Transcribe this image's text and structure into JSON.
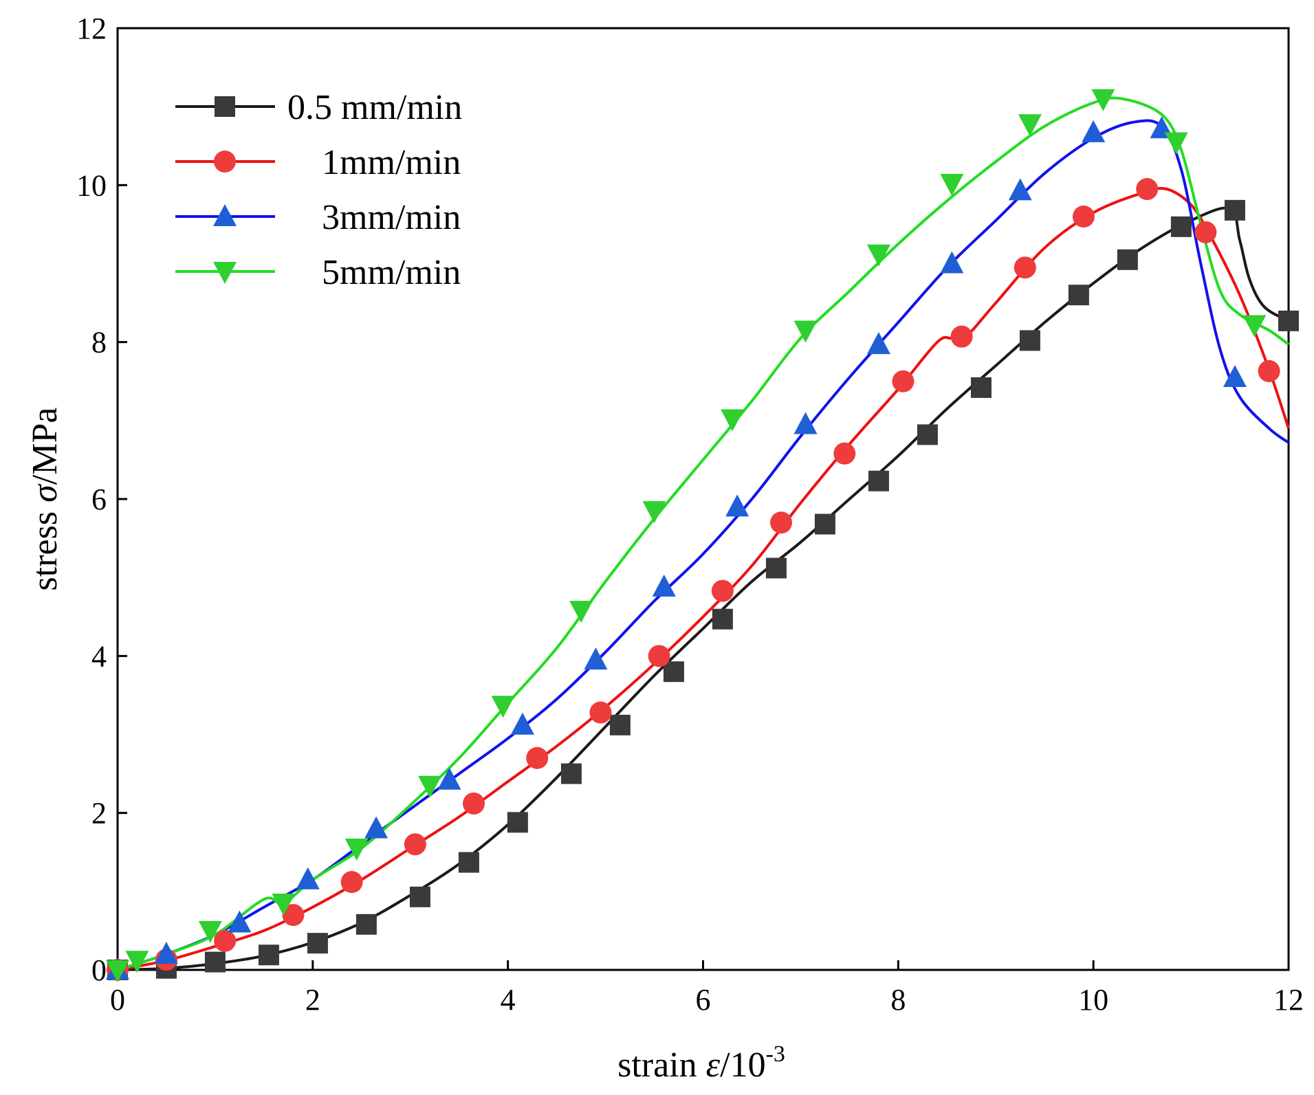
{
  "chart_data": {
    "type": "line",
    "title": "",
    "xlabel": {
      "prefix": "strain ",
      "symbol": "ε",
      "suffix": "/10",
      "sup": "-3"
    },
    "ylabel": {
      "prefix": "stress ",
      "symbol": "σ",
      "suffix": "/MPa"
    },
    "xlim": [
      0,
      12
    ],
    "ylim": [
      0,
      12
    ],
    "xticks": [
      0,
      2,
      4,
      6,
      8,
      10,
      12
    ],
    "yticks": [
      0,
      2,
      4,
      6,
      8,
      10,
      12
    ],
    "legend_position": "top-left",
    "series": [
      {
        "name": "0.5 mm/min",
        "color": "#1a1a1a",
        "marker_color": "#3a3a3a",
        "marker": "square",
        "curve": [
          [
            0,
            0
          ],
          [
            0.5,
            0.02
          ],
          [
            1.0,
            0.08
          ],
          [
            1.5,
            0.18
          ],
          [
            2.0,
            0.35
          ],
          [
            2.5,
            0.6
          ],
          [
            3.0,
            0.95
          ],
          [
            3.5,
            1.35
          ],
          [
            4.0,
            1.85
          ],
          [
            4.5,
            2.45
          ],
          [
            5.0,
            3.1
          ],
          [
            5.5,
            3.75
          ],
          [
            6.0,
            4.35
          ],
          [
            6.5,
            4.95
          ],
          [
            7.0,
            5.45
          ],
          [
            7.5,
            6.0
          ],
          [
            8.0,
            6.55
          ],
          [
            8.5,
            7.15
          ],
          [
            9.0,
            7.7
          ],
          [
            9.5,
            8.25
          ],
          [
            10.0,
            8.75
          ],
          [
            10.5,
            9.2
          ],
          [
            11.0,
            9.55
          ],
          [
            11.4,
            9.7
          ],
          [
            11.5,
            9.3
          ],
          [
            11.6,
            8.8
          ],
          [
            11.75,
            8.45
          ],
          [
            12.0,
            8.27
          ]
        ],
        "markers": [
          [
            0,
            0
          ],
          [
            0.5,
            0.02
          ],
          [
            1.0,
            0.1
          ],
          [
            1.55,
            0.19
          ],
          [
            2.05,
            0.34
          ],
          [
            2.55,
            0.58
          ],
          [
            3.1,
            0.93
          ],
          [
            3.6,
            1.37
          ],
          [
            4.1,
            1.88
          ],
          [
            4.65,
            2.5
          ],
          [
            5.15,
            3.12
          ],
          [
            5.7,
            3.8
          ],
          [
            6.2,
            4.47
          ],
          [
            6.75,
            5.12
          ],
          [
            7.25,
            5.68
          ],
          [
            7.8,
            6.23
          ],
          [
            8.3,
            6.82
          ],
          [
            8.85,
            7.42
          ],
          [
            9.35,
            8.02
          ],
          [
            9.85,
            8.6
          ],
          [
            10.35,
            9.05
          ],
          [
            10.9,
            9.47
          ],
          [
            11.45,
            9.68
          ],
          [
            12.0,
            8.27
          ]
        ]
      },
      {
        "name": "1mm/min",
        "color": "#ee1111",
        "marker_color": "#ee3b3b",
        "marker": "circle",
        "curve": [
          [
            0,
            0
          ],
          [
            0.5,
            0.12
          ],
          [
            1.0,
            0.3
          ],
          [
            1.5,
            0.5
          ],
          [
            2.0,
            0.8
          ],
          [
            2.5,
            1.15
          ],
          [
            3.0,
            1.55
          ],
          [
            3.5,
            1.95
          ],
          [
            4.0,
            2.4
          ],
          [
            4.5,
            2.85
          ],
          [
            5.0,
            3.35
          ],
          [
            5.5,
            3.9
          ],
          [
            6.0,
            4.5
          ],
          [
            6.5,
            5.15
          ],
          [
            7.0,
            5.95
          ],
          [
            7.5,
            6.7
          ],
          [
            8.0,
            7.4
          ],
          [
            8.4,
            8.0
          ],
          [
            8.55,
            8.05
          ],
          [
            8.7,
            8.08
          ],
          [
            9.0,
            8.5
          ],
          [
            9.5,
            9.2
          ],
          [
            10.0,
            9.65
          ],
          [
            10.5,
            9.9
          ],
          [
            10.75,
            9.95
          ],
          [
            11.0,
            9.75
          ],
          [
            11.2,
            9.35
          ],
          [
            11.5,
            8.6
          ],
          [
            11.8,
            7.65
          ],
          [
            12.0,
            6.9
          ]
        ],
        "markers": [
          [
            0,
            0
          ],
          [
            0.5,
            0.13
          ],
          [
            1.1,
            0.37
          ],
          [
            1.8,
            0.7
          ],
          [
            2.4,
            1.12
          ],
          [
            3.05,
            1.6
          ],
          [
            3.65,
            2.12
          ],
          [
            4.3,
            2.7
          ],
          [
            4.95,
            3.28
          ],
          [
            5.55,
            4.0
          ],
          [
            6.2,
            4.83
          ],
          [
            6.8,
            5.7
          ],
          [
            7.45,
            6.58
          ],
          [
            8.05,
            7.5
          ],
          [
            8.65,
            8.07
          ],
          [
            9.3,
            8.95
          ],
          [
            9.9,
            9.6
          ],
          [
            10.55,
            9.95
          ],
          [
            11.15,
            9.4
          ],
          [
            11.8,
            7.63
          ]
        ]
      },
      {
        "name": "3mm/min",
        "color": "#1111ee",
        "marker_color": "#1f5fd6",
        "marker": "triangle-up",
        "curve": [
          [
            0,
            0
          ],
          [
            0.5,
            0.2
          ],
          [
            1.0,
            0.45
          ],
          [
            1.5,
            0.8
          ],
          [
            2.0,
            1.15
          ],
          [
            2.5,
            1.6
          ],
          [
            3.0,
            2.05
          ],
          [
            3.5,
            2.5
          ],
          [
            4.0,
            2.95
          ],
          [
            4.5,
            3.45
          ],
          [
            5.0,
            4.05
          ],
          [
            5.5,
            4.7
          ],
          [
            6.0,
            5.3
          ],
          [
            6.5,
            6.0
          ],
          [
            7.0,
            6.8
          ],
          [
            7.5,
            7.55
          ],
          [
            8.0,
            8.25
          ],
          [
            8.5,
            8.95
          ],
          [
            9.0,
            9.55
          ],
          [
            9.5,
            10.15
          ],
          [
            10.0,
            10.6
          ],
          [
            10.4,
            10.8
          ],
          [
            10.7,
            10.75
          ],
          [
            10.9,
            10.2
          ],
          [
            11.1,
            9.0
          ],
          [
            11.3,
            7.9
          ],
          [
            11.5,
            7.3
          ],
          [
            11.8,
            6.9
          ],
          [
            12.0,
            6.72
          ]
        ],
        "markers": [
          [
            0,
            0
          ],
          [
            0.5,
            0.2
          ],
          [
            1.25,
            0.6
          ],
          [
            1.95,
            1.15
          ],
          [
            2.65,
            1.8
          ],
          [
            3.4,
            2.42
          ],
          [
            4.15,
            3.12
          ],
          [
            4.9,
            3.95
          ],
          [
            5.6,
            4.88
          ],
          [
            6.35,
            5.9
          ],
          [
            7.05,
            6.95
          ],
          [
            7.8,
            7.97
          ],
          [
            8.55,
            9.0
          ],
          [
            9.25,
            9.93
          ],
          [
            10.0,
            10.67
          ],
          [
            10.7,
            10.72
          ],
          [
            11.45,
            7.55
          ]
        ]
      },
      {
        "name": "5mm/min",
        "color": "#22dd22",
        "marker_color": "#2fcf2f",
        "marker": "triangle-down",
        "curve": [
          [
            0,
            0
          ],
          [
            0.5,
            0.2
          ],
          [
            1.0,
            0.45
          ],
          [
            1.5,
            0.9
          ],
          [
            1.7,
            0.85
          ],
          [
            2.0,
            1.15
          ],
          [
            2.5,
            1.55
          ],
          [
            3.0,
            2.1
          ],
          [
            3.5,
            2.7
          ],
          [
            4.0,
            3.4
          ],
          [
            4.5,
            4.1
          ],
          [
            5.0,
            4.95
          ],
          [
            5.5,
            5.75
          ],
          [
            6.0,
            6.5
          ],
          [
            6.5,
            7.25
          ],
          [
            7.0,
            8.05
          ],
          [
            7.5,
            8.65
          ],
          [
            8.0,
            9.25
          ],
          [
            8.5,
            9.8
          ],
          [
            9.0,
            10.3
          ],
          [
            9.5,
            10.75
          ],
          [
            10.0,
            11.05
          ],
          [
            10.3,
            11.1
          ],
          [
            10.7,
            10.9
          ],
          [
            10.9,
            10.45
          ],
          [
            11.1,
            9.5
          ],
          [
            11.3,
            8.65
          ],
          [
            11.5,
            8.35
          ],
          [
            11.8,
            8.15
          ],
          [
            12.0,
            7.97
          ]
        ],
        "markers": [
          [
            0,
            0
          ],
          [
            0.2,
            0.12
          ],
          [
            0.95,
            0.5
          ],
          [
            1.7,
            0.85
          ],
          [
            2.45,
            1.55
          ],
          [
            3.2,
            2.35
          ],
          [
            3.95,
            3.37
          ],
          [
            4.75,
            4.58
          ],
          [
            5.5,
            5.85
          ],
          [
            6.3,
            7.02
          ],
          [
            7.05,
            8.15
          ],
          [
            7.8,
            9.12
          ],
          [
            8.55,
            10.02
          ],
          [
            9.35,
            10.78
          ],
          [
            10.1,
            11.1
          ],
          [
            10.85,
            10.55
          ],
          [
            11.65,
            8.22
          ]
        ]
      }
    ]
  }
}
